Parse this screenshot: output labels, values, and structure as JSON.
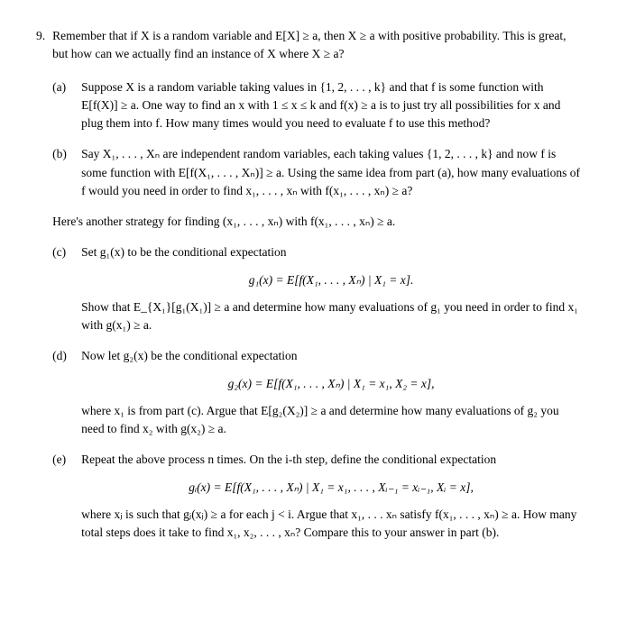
{
  "problem_number": "9.",
  "intro_line1": "Remember that if X is a random variable and E[X] ≥ a, then X ≥ a with positive probability.",
  "intro_line2": "This is great, but how can we actually find an instance of X where X ≥ a?",
  "part_a": {
    "label": "(a)",
    "text": "Suppose X is a random variable taking values in {1, 2, . . . , k} and that f is some function with E[f(X)] ≥ a. One way to find an x with 1 ≤ x ≤ k and f(x) ≥ a is to just try all possibilities for x and plug them into f. How many times would you need to evaluate f to use this method?"
  },
  "part_b": {
    "label": "(b)",
    "text": "Say X₁, . . . , Xₙ are independent random variables, each taking values {1, 2, . . . , k} and now f is some function with E[f(X₁, . . . , Xₙ)] ≥ a. Using the same idea from part (a), how many evaluations of f would you need in order to find x₁, . . . , xₙ with f(x₁, . . . , xₙ) ≥ a?"
  },
  "interlude": "Here's another strategy for finding (x₁, . . . , xₙ) with f(x₁, . . . , xₙ) ≥ a.",
  "part_c": {
    "label": "(c)",
    "text1": "Set g₁(x) to be the conditional expectation",
    "eq": "g₁(x) = E[f(X₁, . . . , Xₙ) | X₁ = x].",
    "text2": "Show that E_{X₁}[g₁(X₁)] ≥ a and determine how many evaluations of g₁ you need in order to find x₁ with g(x₁) ≥ a."
  },
  "part_d": {
    "label": "(d)",
    "text1": "Now let g₂(x) be the conditional expectation",
    "eq": "g₂(x) = E[f(X₁, . . . , Xₙ) | X₁ = x₁, X₂ = x],",
    "text2": "where x₁ is from part (c). Argue that E[g₂(X₂)] ≥ a and determine how many evaluations of g₂ you need to find x₂ with g(x₂) ≥ a."
  },
  "part_e": {
    "label": "(e)",
    "text1": "Repeat the above process n times. On the i-th step, define the conditional expectation",
    "eq": "gᵢ(x) = E[f(X₁, . . . , Xₙ) | X₁ = x₁, . . . , Xᵢ₋₁ = xᵢ₋₁, Xᵢ = x],",
    "text2": "where xⱼ is such that gⱼ(xⱼ) ≥ a for each j < i. Argue that x₁, . . . xₙ satisfy f(x₁, . . . , xₙ) ≥ a. How many total steps does it take to find x₁, x₂, . . . , xₙ? Compare this to your answer in part (b)."
  }
}
